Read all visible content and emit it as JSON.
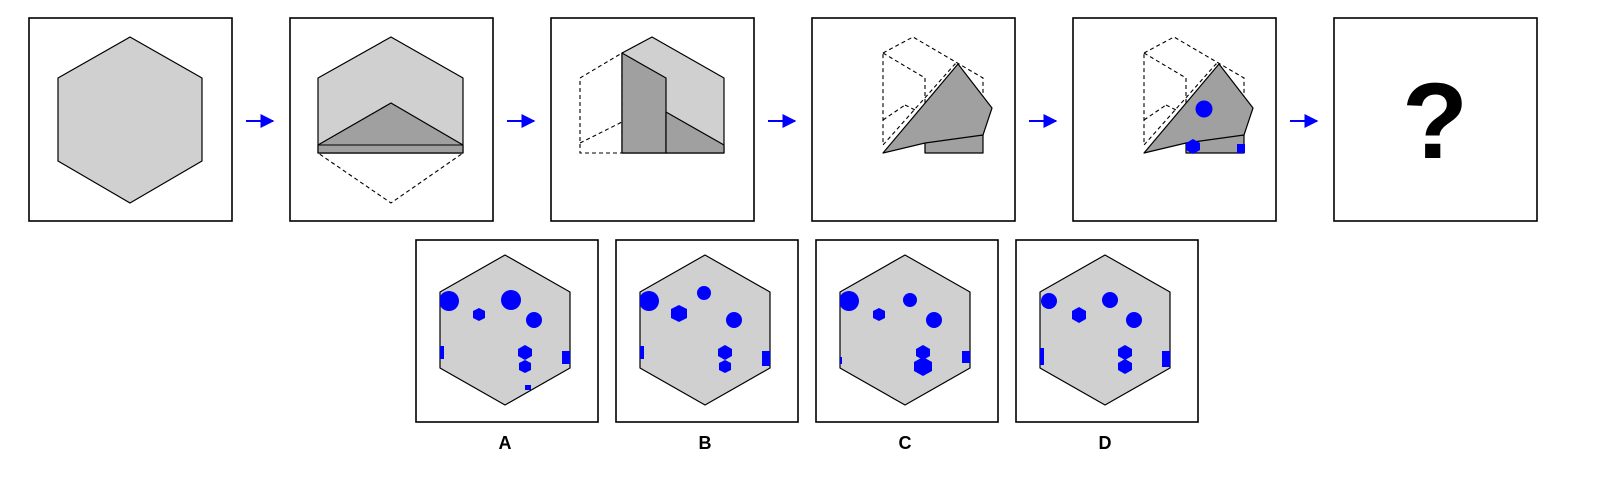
{
  "puzzle": {
    "question_mark": "?"
  },
  "options": [
    {
      "label": "A"
    },
    {
      "label": "B"
    },
    {
      "label": "C"
    },
    {
      "label": "D"
    }
  ],
  "colors": {
    "paper": "#d0d0d0",
    "fold": "#a0a0a0",
    "hole": "#0000ff",
    "arrow": "#0000ff",
    "outline": "#000000"
  }
}
